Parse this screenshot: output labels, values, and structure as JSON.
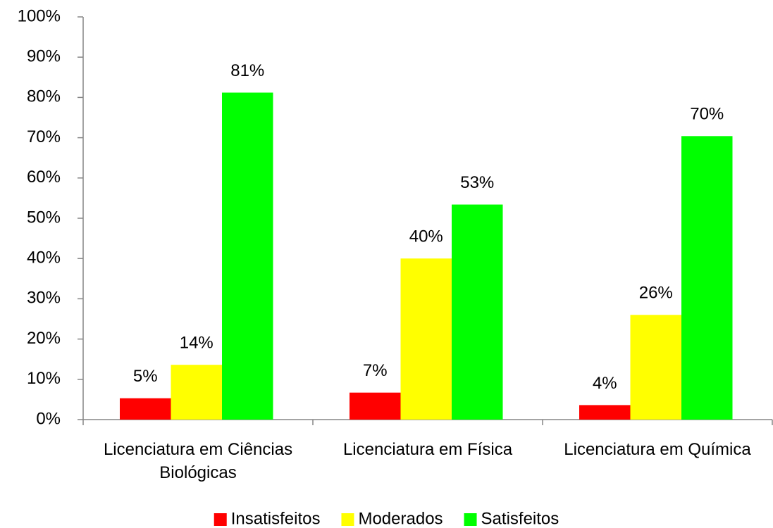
{
  "chart_data": {
    "type": "bar",
    "categories": [
      "Licenciatura em Ciências Biológicas",
      "Licenciatura em Física",
      "Licenciatura em Química"
    ],
    "series": [
      {
        "name": "Insatisfeitos",
        "color": "#ff0000",
        "values": [
          5.3,
          6.7,
          3.6
        ],
        "value_labels": [
          "5%",
          "7%",
          "4%"
        ]
      },
      {
        "name": "Moderados",
        "color": "#ffff00",
        "values": [
          13.6,
          40,
          26
        ],
        "value_labels": [
          "14%",
          "40%",
          "26%"
        ]
      },
      {
        "name": "Satisfeitos",
        "color": "#00ff00",
        "values": [
          81.2,
          53.4,
          70.4
        ],
        "value_labels": [
          "81%",
          "53%",
          "70%"
        ]
      }
    ],
    "ylim": [
      0,
      100
    ],
    "yticks": [
      {
        "value": 0,
        "label": "0%"
      },
      {
        "value": 10,
        "label": "10%"
      },
      {
        "value": 20,
        "label": "20%"
      },
      {
        "value": 30,
        "label": "30%"
      },
      {
        "value": 40,
        "label": "40%"
      },
      {
        "value": 50,
        "label": "50%"
      },
      {
        "value": 60,
        "label": "60%"
      },
      {
        "value": 70,
        "label": "70%"
      },
      {
        "value": 80,
        "label": "80%"
      },
      {
        "value": 90,
        "label": "90%"
      },
      {
        "value": 100,
        "label": "100%"
      }
    ],
    "legend": "bottom"
  }
}
